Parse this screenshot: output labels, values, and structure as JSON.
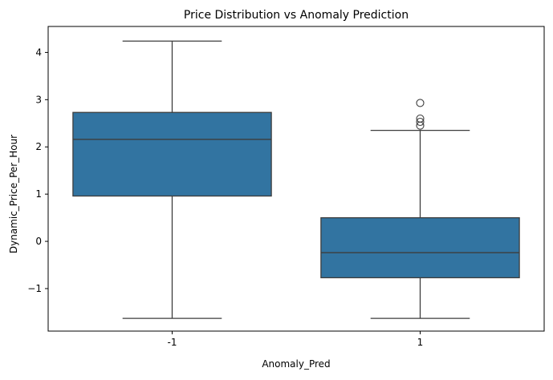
{
  "chart_data": {
    "type": "boxplot",
    "title": "Price Distribution vs Anomaly Prediction",
    "xlabel": "Anomaly_Pred",
    "ylabel": "Dynamic_Price_Per_Hour",
    "categories": [
      "-1",
      "1"
    ],
    "ylim": [
      -1.9,
      4.55
    ],
    "yticks": [
      -1,
      0,
      1,
      2,
      3,
      4
    ],
    "ytick_labels": [
      "−1",
      "0",
      "1",
      "2",
      "3",
      "4"
    ],
    "grid": false,
    "legend": "none",
    "box_color": "#3274a1",
    "line_color": "#3d3d3d",
    "boxes": [
      {
        "category": "-1",
        "whisker_low": -1.63,
        "q1": 0.96,
        "median": 2.16,
        "q3": 2.73,
        "whisker_high": 4.24,
        "outliers": []
      },
      {
        "category": "1",
        "whisker_low": -1.63,
        "q1": -0.77,
        "median": -0.24,
        "q3": 0.5,
        "whisker_high": 2.35,
        "outliers": [
          2.93,
          2.6,
          2.53,
          2.45
        ]
      }
    ]
  }
}
